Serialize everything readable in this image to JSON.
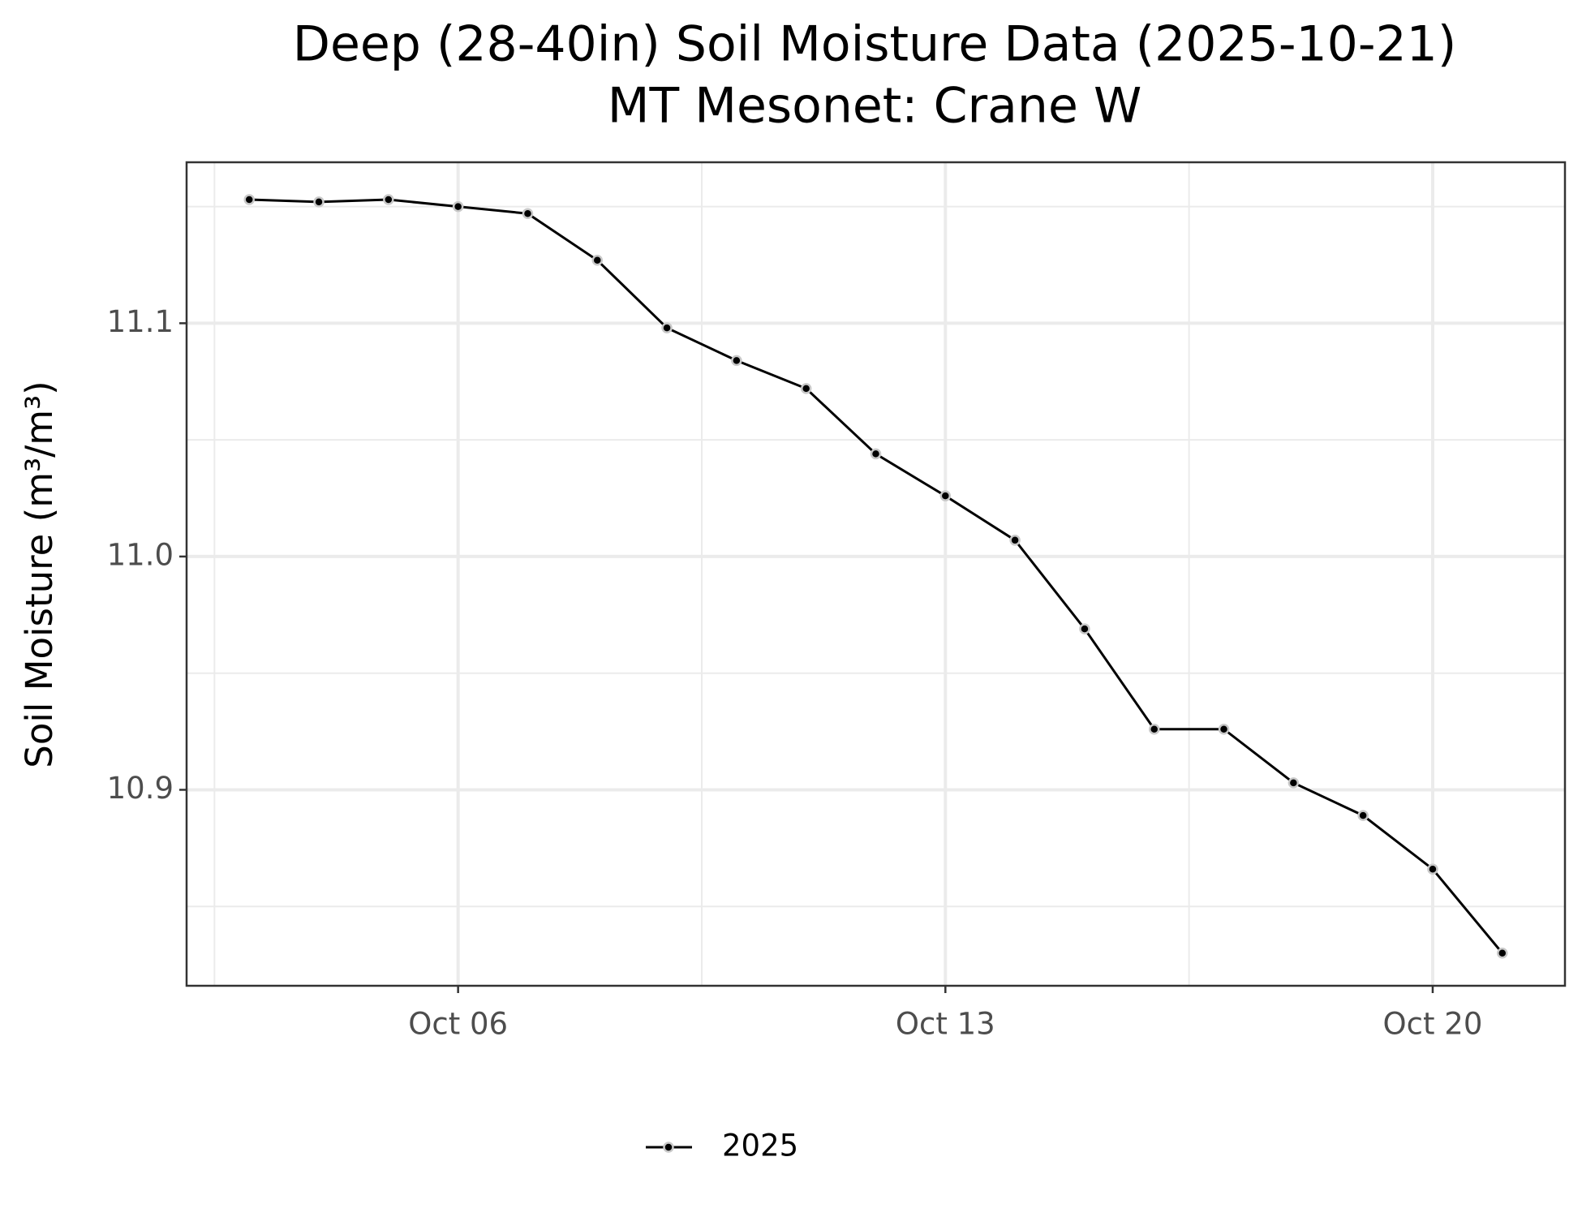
{
  "chart_data": {
    "type": "line",
    "title": "Deep (28-40in) Soil Moisture Data (2025-10-21)",
    "subtitle": "MT Mesonet: Crane W",
    "y_label": "Soil Moisture (m³/m³)",
    "x": [
      "Oct 03",
      "Oct 04",
      "Oct 05",
      "Oct 06",
      "Oct 07",
      "Oct 08",
      "Oct 09",
      "Oct 10",
      "Oct 11",
      "Oct 12",
      "Oct 13",
      "Oct 14",
      "Oct 15",
      "Oct 16",
      "Oct 17",
      "Oct 18",
      "Oct 19",
      "Oct 20",
      "Oct 21"
    ],
    "series": [
      {
        "name": "2025",
        "color": "#000000",
        "values": [
          11.153,
          11.152,
          11.153,
          11.15,
          11.147,
          11.127,
          11.098,
          11.084,
          11.072,
          11.044,
          11.026,
          11.007,
          10.969,
          10.926,
          10.926,
          10.903,
          10.889,
          10.866,
          10.83
        ]
      }
    ],
    "xticks": [
      "Oct 06",
      "Oct 13",
      "Oct 20"
    ],
    "ylim": [
      10.816,
      11.169
    ],
    "yticks": [
      10.9,
      {
        "value": 11.0,
        "label": "11.0"
      },
      11.1
    ],
    "grid": true,
    "legend": "bottom"
  }
}
